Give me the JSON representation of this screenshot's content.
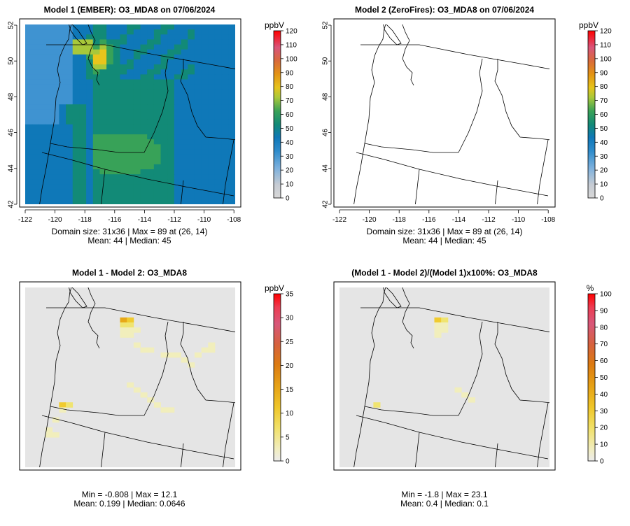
{
  "panels": [
    {
      "id": "p1",
      "title": "Model 1 (EMBER): O3_MDA8 on 07/06/2024",
      "kind": "conc",
      "stats": [
        "Domain size: 31x36 | Max = 89 at (26, 14)",
        "Mean: 44 |  Median: 45"
      ],
      "colorbar": {
        "unit": "ppbV",
        "ticks": [
          "0",
          "10",
          "20",
          "30",
          "40",
          "50",
          "60",
          "70",
          "80",
          "90",
          "100",
          "110",
          "120"
        ]
      },
      "xticks": [
        "-122",
        "-120",
        "-118",
        "-116",
        "-114",
        "-112",
        "-110",
        "-108"
      ],
      "yticks": [
        "42",
        "44",
        "46",
        "48",
        "50",
        "52"
      ]
    },
    {
      "id": "p2",
      "title": "Model 2 (ZeroFires): O3_MDA8 on 07/06/2024",
      "kind": "conc",
      "stats": [
        "Domain size: 31x36 | Max = 89 at (26, 14)",
        "Mean: 44 |  Median: 45"
      ],
      "colorbar": {
        "unit": "ppbV",
        "ticks": [
          "0",
          "10",
          "20",
          "30",
          "40",
          "50",
          "60",
          "70",
          "80",
          "90",
          "100",
          "110",
          "120"
        ]
      },
      "xticks": [
        "-122",
        "-120",
        "-118",
        "-116",
        "-114",
        "-112",
        "-110",
        "-108"
      ],
      "yticks": [
        "42",
        "44",
        "46",
        "48",
        "50",
        "52"
      ]
    },
    {
      "id": "p3",
      "title": "Model 1 - Model 2: O3_MDA8",
      "kind": "diff",
      "stats": [
        "Min = -0.808 | Max = 12.1",
        "Mean: 0.199 |  Median: 0.0646"
      ],
      "colorbar": {
        "unit": "ppbV",
        "ticks": [
          "0",
          "5",
          "10",
          "15",
          "20",
          "25",
          "30",
          "35"
        ]
      }
    },
    {
      "id": "p4",
      "title": "(Model 1 - Model 2)/(Model 1)x100%: O3_MDA8",
      "kind": "pct",
      "stats": [
        "Min = -1.8 | Max = 23.1",
        "Mean: 0.4 |  Median: 0.1"
      ],
      "colorbar": {
        "unit": "%",
        "ticks": [
          "0",
          "10",
          "20",
          "30",
          "40",
          "50",
          "60",
          "70",
          "80",
          "90",
          "100"
        ]
      }
    }
  ],
  "colors": {
    "conc_scale": [
      "#d8d8d8",
      "#8fb8df",
      "#3f93d1",
      "#0f78b8",
      "#128a77",
      "#38a258",
      "#a8c83a",
      "#e8c51c",
      "#e8860f",
      "#d63c1c",
      "#e01a2e",
      "#ff0000"
    ],
    "diff_scale": [
      "#ececec",
      "#f1eebc",
      "#f0e470",
      "#f0cb2f",
      "#e7a817",
      "#dd7b10",
      "#d85a32",
      "#d94f6b",
      "#ef3b52",
      "#ff0000"
    ],
    "map_background": "#e5e5e5"
  }
}
